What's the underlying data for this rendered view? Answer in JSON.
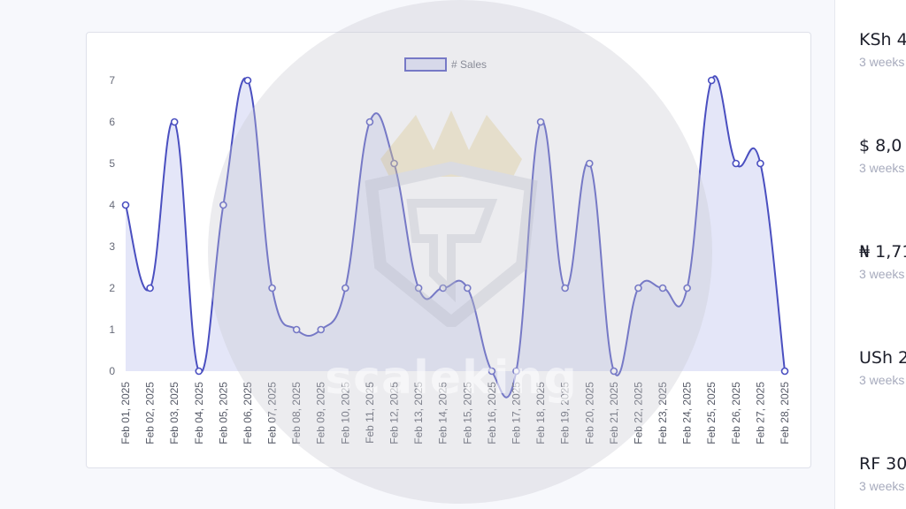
{
  "chart_data": {
    "type": "area",
    "series": [
      {
        "name": "# Sales",
        "values": [
          4,
          2,
          6,
          0,
          4,
          7,
          2,
          1,
          1,
          2,
          6,
          5,
          2,
          2,
          2,
          0,
          0,
          6,
          2,
          5,
          0,
          2,
          2,
          2,
          7,
          5,
          5,
          0
        ]
      }
    ],
    "categories": [
      "Feb 01, 2025",
      "Feb 02, 2025",
      "Feb 03, 2025",
      "Feb 04, 2025",
      "Feb 05, 2025",
      "Feb 06, 2025",
      "Feb 07, 2025",
      "Feb 08, 2025",
      "Feb 09, 2025",
      "Feb 10, 2025",
      "Feb 11, 2025",
      "Feb 12, 2025",
      "Feb 13, 2025",
      "Feb 14, 2025",
      "Feb 15, 2025",
      "Feb 16, 2025",
      "Feb 17, 2025",
      "Feb 18, 2025",
      "Feb 19, 2025",
      "Feb 20, 2025",
      "Feb 21, 2025",
      "Feb 22, 2025",
      "Feb 23, 2025",
      "Feb 24, 2025",
      "Feb 25, 2025",
      "Feb 26, 2025",
      "Feb 27, 2025",
      "Feb 28, 2025"
    ],
    "y_ticks": [
      "0",
      "1",
      "2",
      "3",
      "4",
      "5",
      "6",
      "7"
    ],
    "ylim": [
      0,
      7
    ],
    "legend": "top-center",
    "line_color": "#4a4fc0",
    "fill_color": "#dfe2f7"
  },
  "watermark": {
    "text": "scaleking"
  },
  "right_panel": {
    "items": [
      {
        "value": "KSh 4",
        "sub": "3 weeks"
      },
      {
        "value": "$ 8,0",
        "sub": "3 weeks"
      },
      {
        "value": "₦ 1,71",
        "sub": "3 weeks"
      },
      {
        "value": "USh 2",
        "sub": "3 weeks"
      },
      {
        "value": "RF 30",
        "sub": "3 weeks"
      }
    ]
  }
}
